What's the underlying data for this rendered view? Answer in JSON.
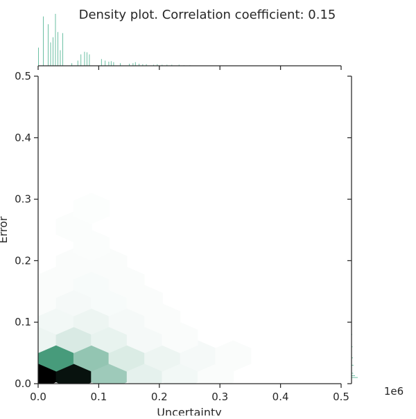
{
  "chart_data": {
    "type": "hexbin",
    "title": "Density plot. Correlation coefficient: 0.15",
    "xlabel": "Uncertainty",
    "ylabel": "Error",
    "xlim": [
      0.0,
      0.5
    ],
    "ylim": [
      0.0,
      0.5
    ],
    "xticks": [
      "0.0",
      "0.1",
      "0.2",
      "0.3",
      "0.4",
      "0.5"
    ],
    "yticks": [
      "0.0",
      "0.1",
      "0.2",
      "0.3",
      "0.4",
      "0.5"
    ],
    "offset_text": "1e6",
    "colormap": {
      "low": "#ffffff",
      "mid": "#3f9776",
      "high": "#000000"
    },
    "marginal_color": "#6bbfa3",
    "hexbins": [
      {
        "x": 0.0,
        "y": 0.015,
        "density": 1.0
      },
      {
        "x": 0.059,
        "y": 0.015,
        "density": 0.97
      },
      {
        "x": 0.117,
        "y": 0.015,
        "density": 0.38
      },
      {
        "x": 0.176,
        "y": 0.015,
        "density": 0.1
      },
      {
        "x": 0.234,
        "y": 0.015,
        "density": 0.05
      },
      {
        "x": 0.293,
        "y": 0.015,
        "density": 0.02
      },
      {
        "x": 0.03,
        "y": 0.045,
        "density": 0.72
      },
      {
        "x": 0.088,
        "y": 0.045,
        "density": 0.42
      },
      {
        "x": 0.146,
        "y": 0.045,
        "density": 0.14
      },
      {
        "x": 0.205,
        "y": 0.045,
        "density": 0.07
      },
      {
        "x": 0.264,
        "y": 0.045,
        "density": 0.04
      },
      {
        "x": 0.322,
        "y": 0.045,
        "density": 0.02
      },
      {
        "x": 0.0,
        "y": 0.075,
        "density": 0.07
      },
      {
        "x": 0.059,
        "y": 0.075,
        "density": 0.15
      },
      {
        "x": 0.117,
        "y": 0.075,
        "density": 0.09
      },
      {
        "x": 0.176,
        "y": 0.075,
        "density": 0.04
      },
      {
        "x": 0.234,
        "y": 0.075,
        "density": 0.02
      },
      {
        "x": 0.03,
        "y": 0.105,
        "density": 0.05
      },
      {
        "x": 0.088,
        "y": 0.105,
        "density": 0.07
      },
      {
        "x": 0.146,
        "y": 0.105,
        "density": 0.04
      },
      {
        "x": 0.205,
        "y": 0.105,
        "density": 0.02
      },
      {
        "x": 0.0,
        "y": 0.135,
        "density": 0.02
      },
      {
        "x": 0.059,
        "y": 0.135,
        "density": 0.04
      },
      {
        "x": 0.117,
        "y": 0.135,
        "density": 0.03
      },
      {
        "x": 0.176,
        "y": 0.135,
        "density": 0.02
      },
      {
        "x": 0.03,
        "y": 0.165,
        "density": 0.02
      },
      {
        "x": 0.088,
        "y": 0.165,
        "density": 0.03
      },
      {
        "x": 0.146,
        "y": 0.165,
        "density": 0.02
      },
      {
        "x": 0.059,
        "y": 0.195,
        "density": 0.02
      },
      {
        "x": 0.117,
        "y": 0.195,
        "density": 0.02
      },
      {
        "x": 0.088,
        "y": 0.225,
        "density": 0.015
      },
      {
        "x": 0.059,
        "y": 0.255,
        "density": 0.015
      },
      {
        "x": 0.088,
        "y": 0.285,
        "density": 0.01
      }
    ],
    "x_marginal": [
      {
        "x": 0.0,
        "h": 0.35
      },
      {
        "x": 0.008,
        "h": 0.95
      },
      {
        "x": 0.016,
        "h": 0.8
      },
      {
        "x": 0.02,
        "h": 0.45
      },
      {
        "x": 0.024,
        "h": 0.55
      },
      {
        "x": 0.028,
        "h": 1.0
      },
      {
        "x": 0.032,
        "h": 0.65
      },
      {
        "x": 0.036,
        "h": 0.3
      },
      {
        "x": 0.04,
        "h": 0.63
      },
      {
        "x": 0.055,
        "h": 0.05
      },
      {
        "x": 0.065,
        "h": 0.1
      },
      {
        "x": 0.07,
        "h": 0.22
      },
      {
        "x": 0.076,
        "h": 0.27
      },
      {
        "x": 0.08,
        "h": 0.26
      },
      {
        "x": 0.084,
        "h": 0.22
      },
      {
        "x": 0.104,
        "h": 0.13
      },
      {
        "x": 0.11,
        "h": 0.1
      },
      {
        "x": 0.116,
        "h": 0.08
      },
      {
        "x": 0.12,
        "h": 0.09
      },
      {
        "x": 0.124,
        "h": 0.07
      },
      {
        "x": 0.135,
        "h": 0.05
      },
      {
        "x": 0.15,
        "h": 0.04
      },
      {
        "x": 0.156,
        "h": 0.05
      },
      {
        "x": 0.16,
        "h": 0.07
      },
      {
        "x": 0.166,
        "h": 0.04
      },
      {
        "x": 0.172,
        "h": 0.03
      },
      {
        "x": 0.178,
        "h": 0.03
      },
      {
        "x": 0.19,
        "h": 0.02
      },
      {
        "x": 0.196,
        "h": 0.03
      },
      {
        "x": 0.204,
        "h": 0.02
      },
      {
        "x": 0.212,
        "h": 0.02
      },
      {
        "x": 0.22,
        "h": 0.02
      },
      {
        "x": 0.232,
        "h": 0.02
      },
      {
        "x": 0.24,
        "h": 0.01
      },
      {
        "x": 0.25,
        "h": 0.01
      }
    ],
    "y_marginal": [
      {
        "y": 0.01,
        "w": 0.9
      },
      {
        "y": 0.013,
        "w": 0.5
      },
      {
        "y": 0.017,
        "w": 0.25
      },
      {
        "y": 0.03,
        "w": 0.3
      },
      {
        "y": 0.042,
        "w": 0.2
      },
      {
        "y": 0.06,
        "w": 0.15
      },
      {
        "y": 0.08,
        "w": 0.1
      }
    ]
  }
}
